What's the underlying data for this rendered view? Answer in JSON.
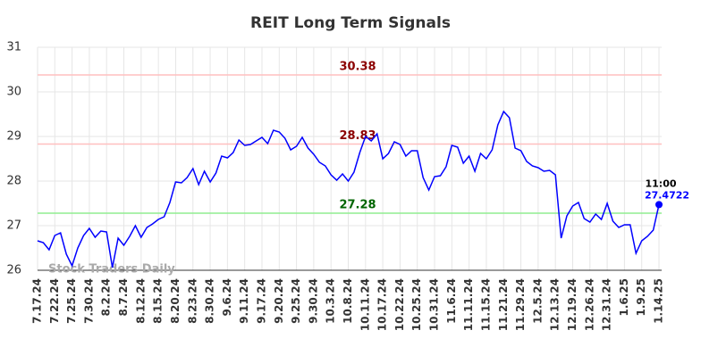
{
  "chart_data": {
    "type": "line",
    "title": "REIT Long Term Signals",
    "categories": [
      "7.17.24",
      null,
      null,
      "7.22.24",
      null,
      null,
      "7.25.24",
      null,
      null,
      "7.30.24",
      null,
      null,
      "8.2.24",
      null,
      null,
      "8.7.24",
      null,
      null,
      "8.12.24",
      null,
      null,
      "8.15.24",
      null,
      null,
      "8.20.24",
      null,
      null,
      "8.23.24",
      null,
      null,
      "8.30.24",
      null,
      null,
      "9.6.24",
      null,
      null,
      "9.11.24",
      null,
      null,
      "9.17.24",
      null,
      null,
      "9.20.24",
      null,
      null,
      "9.25.24",
      null,
      null,
      "9.30.24",
      null,
      null,
      "10.3.24",
      null,
      null,
      "10.8.24",
      null,
      null,
      "10.11.24",
      null,
      null,
      "10.17.24",
      null,
      null,
      "10.22.24",
      null,
      null,
      "10.25.24",
      null,
      null,
      "10.31.24",
      null,
      null,
      "11.6.24",
      null,
      null,
      "11.11.24",
      null,
      null,
      "11.15.24",
      null,
      null,
      "11.21.24",
      null,
      null,
      "11.29.24",
      null,
      null,
      "12.5.24",
      null,
      null,
      "12.13.24",
      null,
      null,
      "12.19.24",
      null,
      null,
      "12.26.24",
      null,
      null,
      "12.31.24",
      null,
      null,
      "1.6.25",
      null,
      null,
      "1.9.25",
      null,
      null,
      "1.14.25"
    ],
    "values": [
      26.66,
      26.62,
      26.46,
      26.78,
      26.84,
      26.36,
      26.1,
      26.5,
      26.78,
      26.94,
      26.74,
      26.88,
      26.86,
      26.06,
      26.72,
      26.56,
      26.76,
      27.0,
      26.74,
      26.96,
      27.04,
      27.14,
      27.2,
      27.52,
      27.98,
      27.96,
      28.08,
      28.28,
      27.92,
      28.22,
      27.98,
      28.18,
      28.56,
      28.52,
      28.64,
      28.92,
      28.8,
      28.82,
      28.9,
      28.98,
      28.84,
      29.14,
      29.1,
      28.96,
      28.7,
      28.78,
      28.98,
      28.74,
      28.6,
      28.42,
      28.34,
      28.14,
      28.02,
      28.16,
      28.0,
      28.2,
      28.64,
      29.0,
      28.9,
      29.06,
      28.5,
      28.62,
      28.88,
      28.82,
      28.56,
      28.68,
      28.68,
      28.08,
      27.8,
      28.1,
      28.12,
      28.32,
      28.8,
      28.76,
      28.4,
      28.56,
      28.22,
      28.62,
      28.5,
      28.7,
      29.26,
      29.56,
      29.42,
      28.74,
      28.68,
      28.44,
      28.34,
      28.3,
      28.22,
      28.24,
      28.14,
      26.72,
      27.22,
      27.44,
      27.52,
      27.16,
      27.08,
      27.26,
      27.14,
      27.5,
      27.1,
      26.96,
      27.02,
      27.02,
      26.38,
      26.66,
      26.76,
      26.9,
      27.4722
    ],
    "color": "#0000ff",
    "ylim": [
      26,
      31
    ],
    "yticks": [
      26,
      27,
      28,
      29,
      30,
      31
    ],
    "grid": true,
    "hlines": [
      {
        "value": 30.38,
        "color": "#ffbfbf",
        "label_color": "#8b0000"
      },
      {
        "value": 28.83,
        "color": "#ffbfbf",
        "label_color": "#8b0000"
      },
      {
        "value": 27.28,
        "color": "#90ee90",
        "label_color": "#006400"
      }
    ],
    "last_time": "11:00",
    "watermark": "Stock Traders Daily"
  }
}
